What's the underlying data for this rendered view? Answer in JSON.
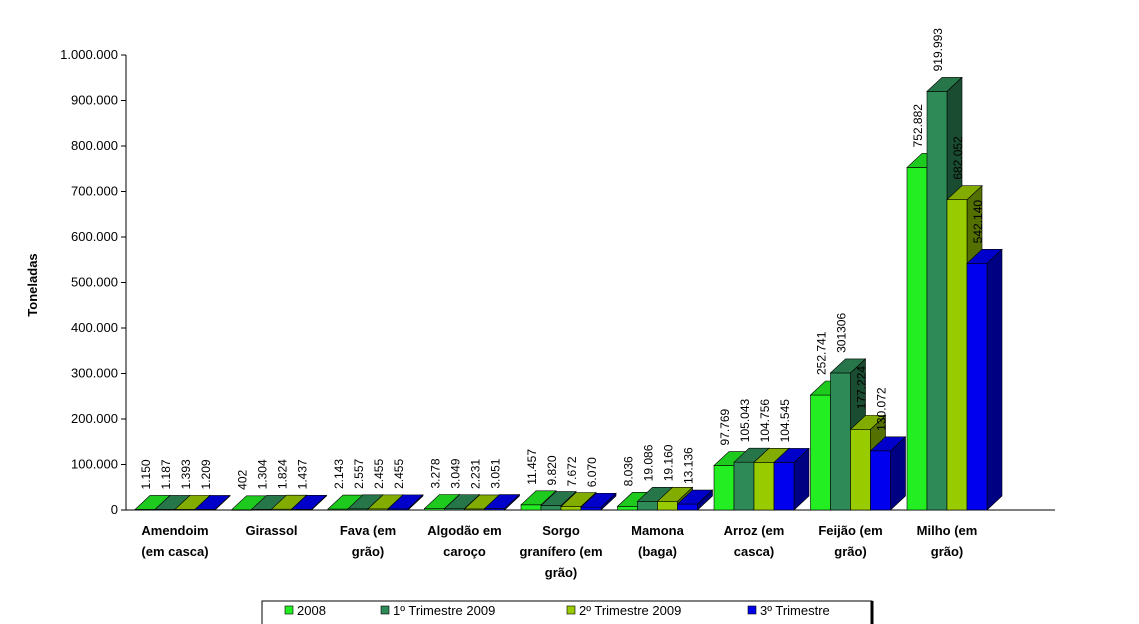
{
  "chart_data": {
    "type": "bar",
    "ylabel": "Toneladas",
    "ylim": [
      0,
      1000000
    ],
    "yticks": [
      "0",
      "100.000",
      "200.000",
      "300.000",
      "400.000",
      "500.000",
      "600.000",
      "700.000",
      "800.000",
      "900.000",
      "1.000.000"
    ],
    "ytick_values": [
      0,
      100000,
      200000,
      300000,
      400000,
      500000,
      600000,
      700000,
      800000,
      900000,
      1000000
    ],
    "categories": [
      [
        "Amendoim",
        "(em casca)"
      ],
      [
        "Girassol"
      ],
      [
        "Fava (em",
        "grão)"
      ],
      [
        "Algodão em",
        "caroço"
      ],
      [
        "Sorgo",
        "granífero (em",
        "grão)"
      ],
      [
        "Mamona",
        "(baga)"
      ],
      [
        "Arroz (em",
        "casca)"
      ],
      [
        "Feijão (em",
        "grão)"
      ],
      [
        "Milho (em",
        "grão)"
      ]
    ],
    "series": [
      {
        "name": "2008",
        "color": "#22ee22",
        "values": [
          1150,
          402,
          2143,
          3278,
          11457,
          8036,
          97769,
          252741,
          752882
        ],
        "labels": [
          "1.150",
          "402",
          "2.143",
          "3.278",
          "11.457",
          "8.036",
          "97.769",
          "252.741",
          "752.882"
        ]
      },
      {
        "name": "1º Trimestre 2009",
        "color": "#2e8b57",
        "values": [
          1187,
          1304,
          2557,
          3049,
          9820,
          19086,
          105043,
          301306,
          919993
        ],
        "labels": [
          "1.187",
          "1.304",
          "2.557",
          "3.049",
          "9.820",
          "19.086",
          "105.043",
          "301306",
          "919.993"
        ]
      },
      {
        "name": "2º Trimestre 2009",
        "color": "#99cc00",
        "values": [
          1393,
          1824,
          2455,
          2231,
          7672,
          19160,
          104756,
          177224,
          682052
        ],
        "labels": [
          "1.393",
          "1.824",
          "2.455",
          "2.231",
          "7.672",
          "19.160",
          "104.756",
          "177.224",
          "682.052"
        ]
      },
      {
        "name": "3º Trimestre",
        "color": "#0000ee",
        "values": [
          1209,
          1437,
          2455,
          3051,
          6070,
          13136,
          104545,
          130072,
          542140
        ],
        "labels": [
          "1.209",
          "1.437",
          "2.455",
          "3.051",
          "6.070",
          "13.136",
          "104.545",
          "130.072",
          "542.140"
        ]
      }
    ],
    "legend_position": "bottom",
    "grid": false
  }
}
